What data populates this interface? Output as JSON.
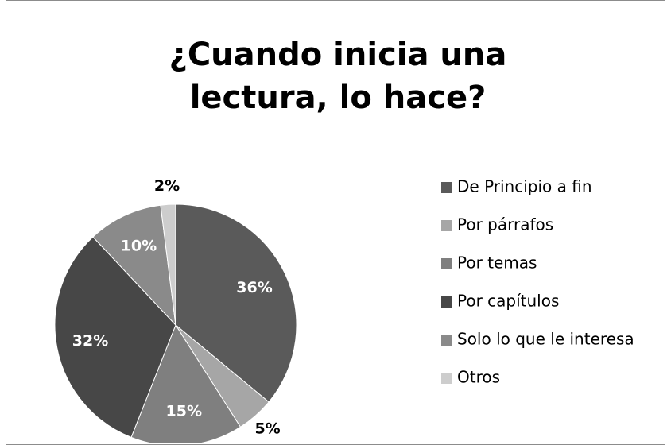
{
  "chart_data": {
    "type": "pie",
    "title": "¿Cuando inicia una lectura, lo hace?",
    "categories": [
      "De Principio a fin",
      "Por párrafos",
      "Por temas",
      "Por capítulos",
      "Solo lo que le interesa",
      "Otros"
    ],
    "values": [
      36,
      5,
      15,
      32,
      10,
      2
    ],
    "value_labels": [
      "36%",
      "5%",
      "15%",
      "32%",
      "10%",
      "2%"
    ],
    "colors": [
      "#5a5a5a",
      "#a6a6a6",
      "#7f7f7f",
      "#474747",
      "#8a8a8a",
      "#cdcdcd"
    ],
    "legend": "right"
  }
}
